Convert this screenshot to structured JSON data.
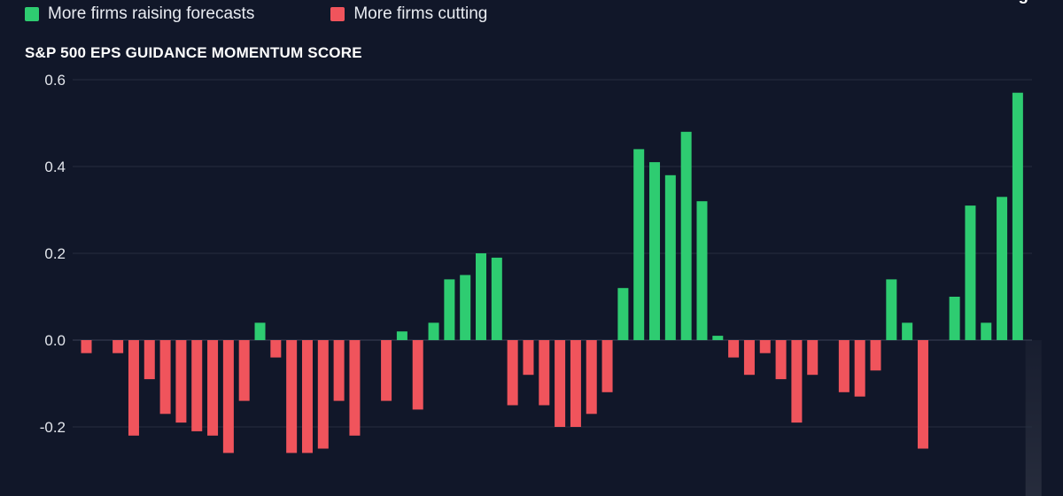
{
  "legend": {
    "items": [
      {
        "label": "More firms raising forecasts",
        "color": "#2ecc71"
      },
      {
        "label": "More firms cutting",
        "color": "#f0545c"
      }
    ]
  },
  "chart_data": {
    "type": "bar",
    "title": "S&P 500 EPS GUIDANCE MOMENTUM SCORE",
    "xlabel": "",
    "ylabel": "",
    "ylim": [
      -0.3,
      0.6
    ],
    "yticks": [
      0.6,
      0.4,
      0.2,
      0.0,
      -0.2
    ],
    "ytick_labels": [
      "0.6",
      "0.4",
      "0.2",
      "0.0",
      "-0.2"
    ],
    "grid": true,
    "legend_position": "top-left",
    "colors": {
      "positive": "#2ecc71",
      "negative": "#f0545c",
      "highlight": "#3df08a",
      "grid": "#262e40",
      "zero_line": "#3a4256"
    },
    "annotation": {
      "text": "Record high",
      "target_index": 60
    },
    "values": [
      -0.03,
      0,
      -0.03,
      -0.22,
      -0.09,
      -0.17,
      -0.19,
      -0.21,
      -0.22,
      -0.26,
      -0.14,
      0.04,
      -0.04,
      -0.26,
      -0.26,
      -0.25,
      -0.14,
      -0.22,
      0,
      -0.14,
      0.02,
      -0.16,
      0.04,
      0.14,
      0.15,
      0.2,
      0.19,
      -0.15,
      -0.08,
      -0.15,
      -0.2,
      -0.2,
      -0.17,
      -0.12,
      0.12,
      0.44,
      0.41,
      0.38,
      0.48,
      0.32,
      0.01,
      -0.04,
      -0.08,
      -0.03,
      -0.09,
      -0.19,
      -0.08,
      0,
      -0.12,
      -0.13,
      -0.07,
      0.14,
      0.04,
      -0.25,
      0,
      0.1,
      0.31,
      0.04,
      0.33,
      0.57
    ]
  }
}
